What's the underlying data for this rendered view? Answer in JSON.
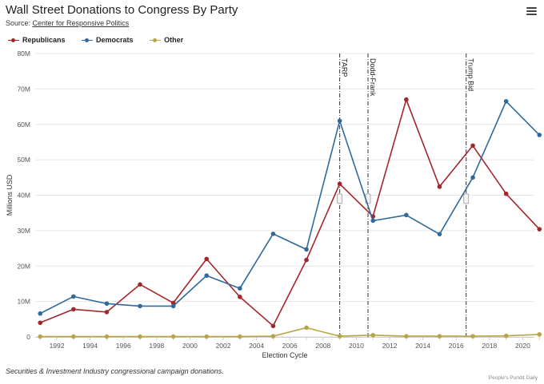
{
  "header": {
    "title": "Wall Street Donations to Congress By Party",
    "source_prefix": "Source: ",
    "source_link": "Center for Responsive Politics",
    "menu_icon": "hamburger-menu-icon"
  },
  "footer": {
    "caption": "Securities & Investment Industry congressional campaign donations.",
    "credit": "People's Pundit Daily"
  },
  "chart_data": {
    "type": "line",
    "title": "Wall Street Donations to Congress By Party",
    "xlabel": "Election Cycle",
    "ylabel": "Millions USD",
    "xlim": [
      1990.7,
      2020.7
    ],
    "ylim": [
      0,
      80
    ],
    "x_ticks": [
      1992,
      1994,
      1996,
      1998,
      2000,
      2002,
      2004,
      2006,
      2008,
      2010,
      2012,
      2014,
      2016,
      2018,
      2020
    ],
    "y_ticks": [
      0,
      10,
      20,
      30,
      40,
      50,
      60,
      70,
      80
    ],
    "y_tick_labels": [
      "0",
      "10M",
      "20M",
      "30M",
      "40M",
      "50M",
      "60M",
      "70M",
      "80M"
    ],
    "x": [
      1991,
      1992,
      1993,
      1994,
      1995,
      1996,
      1997,
      1998,
      1999,
      2000,
      2001,
      2002,
      2003,
      2004,
      2005,
      2006,
      2007,
      2008,
      2009,
      2010,
      2011,
      2012,
      2013,
      2014,
      2015,
      2016,
      2017,
      2018,
      2019,
      2020,
      2021
    ],
    "series": [
      {
        "name": "Republicans",
        "color": "#a3262c",
        "x": [
          1991,
          1993,
          1995,
          1997,
          1999,
          2001,
          2003,
          2005,
          2007,
          2009,
          2011,
          2013,
          2015,
          2017,
          2019,
          2021
        ],
        "values": [
          4.0,
          7.8,
          7.0,
          14.8,
          9.6,
          22.0,
          11.3,
          3.1,
          21.7,
          43.2,
          34.0,
          67.0,
          42.4,
          54.0,
          40.4,
          30.4
        ]
      },
      {
        "name": "Democrats",
        "color": "#2f6a9a",
        "x": [
          1991,
          1993,
          1995,
          1997,
          1999,
          2001,
          2003,
          2005,
          2007,
          2009,
          2011,
          2013,
          2015,
          2017,
          2019,
          2021
        ],
        "values": [
          6.6,
          11.4,
          9.4,
          8.7,
          8.7,
          17.3,
          13.7,
          29.1,
          24.7,
          61.0,
          32.8,
          34.4,
          29.0,
          45.0,
          66.5,
          57.0
        ]
      },
      {
        "name": "Other",
        "color": "#b7a649",
        "x": [
          1991,
          1993,
          1995,
          1997,
          1999,
          2001,
          2003,
          2005,
          2007,
          2009,
          2011,
          2013,
          2015,
          2017,
          2019,
          2021
        ],
        "values": [
          0.1,
          0.1,
          0.1,
          0.1,
          0.1,
          0.1,
          0.1,
          0.2,
          2.6,
          0.2,
          0.5,
          0.2,
          0.2,
          0.2,
          0.3,
          0.7
        ]
      }
    ],
    "annotations": [
      {
        "label": "TARP",
        "x": 2009
      },
      {
        "label": "Dodd-Frank",
        "x": 2010.7
      },
      {
        "label": "Trump Bid",
        "x": 2016.6
      }
    ],
    "legend": [
      "Republicans",
      "Democrats",
      "Other"
    ],
    "legend_position": "top-left",
    "grid": true
  }
}
